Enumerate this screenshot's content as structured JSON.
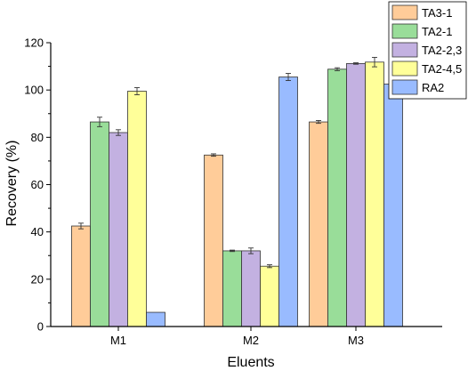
{
  "chart_data": {
    "type": "bar",
    "title": "",
    "xlabel": "Eluents",
    "ylabel": "Recovery (%)",
    "ylim": [
      0,
      120
    ],
    "yticks": [
      "0",
      "20",
      "40",
      "60",
      "80",
      "100",
      "120"
    ],
    "categories": [
      "M1",
      "M2",
      "M3"
    ],
    "grid": false,
    "legend_position": "top-right",
    "series": [
      {
        "name": "TA3-1",
        "color": "#FFCC99",
        "values": [
          42.5,
          72.5,
          86.5
        ],
        "errors": [
          1.2,
          0.5,
          0.6
        ]
      },
      {
        "name": "TA2-1",
        "color": "#99DD99",
        "values": [
          86.5,
          32.0,
          108.8
        ],
        "errors": [
          2.0,
          0.3,
          0.6
        ]
      },
      {
        "name": "TA2-2,3",
        "color": "#C3B1E1",
        "values": [
          82.0,
          32.0,
          111.2
        ],
        "errors": [
          1.2,
          1.2,
          0.3
        ]
      },
      {
        "name": "TA2-4,5",
        "color": "#FFFF99",
        "values": [
          99.5,
          25.5,
          111.8
        ],
        "errors": [
          1.5,
          0.6,
          2.0
        ]
      },
      {
        "name": "RA2",
        "color": "#99BBFF",
        "values": [
          6.0,
          105.5,
          102.5
        ],
        "errors": [
          0,
          1.5,
          0.5
        ]
      }
    ]
  }
}
